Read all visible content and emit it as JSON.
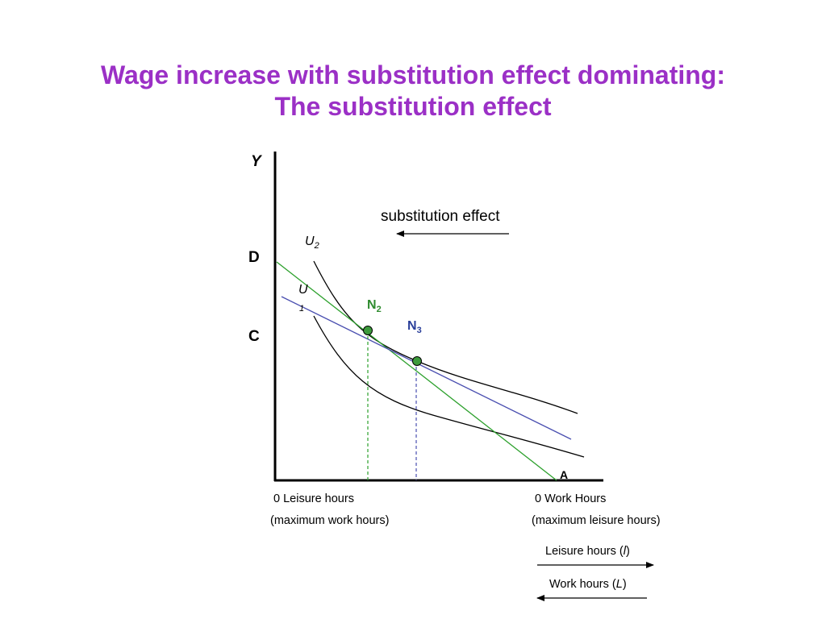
{
  "title": {
    "line1": "Wage increase with substitution effect dominating:",
    "line2": "The substitution effect"
  },
  "axes": {
    "y_label": "Y",
    "tick_d": "D",
    "tick_c": "C",
    "point_a": "A"
  },
  "annotations": {
    "substitution_effect": "substitution effect"
  },
  "curves": {
    "u2_letter": "U",
    "u2_sub": "2",
    "u1_letter": "U",
    "u1_sub": "1"
  },
  "points": {
    "n2_letter": "N",
    "n2_sub": "2",
    "n3_letter": "N",
    "n3_sub": "3"
  },
  "x_labels": {
    "left_line1": "0 Leisure hours",
    "left_line2": "(maximum work hours)",
    "right_line1": "0 Work Hours",
    "right_line2": "(maximum leisure hours)"
  },
  "direction_labels": {
    "leisure_prefix": "Leisure hours (",
    "leisure_var": "l",
    "leisure_suffix": ")",
    "work_prefix": "Work hours (",
    "work_var": "L",
    "work_suffix": ")"
  },
  "colors": {
    "title": "#9b30c6",
    "green_line": "#2ca02c",
    "blue_line": "#4a4fb0",
    "point_fill": "#3c9a3c",
    "n2_label": "#2e8b2e",
    "n3_label": "#2a3f9a",
    "axis": "#000000"
  }
}
